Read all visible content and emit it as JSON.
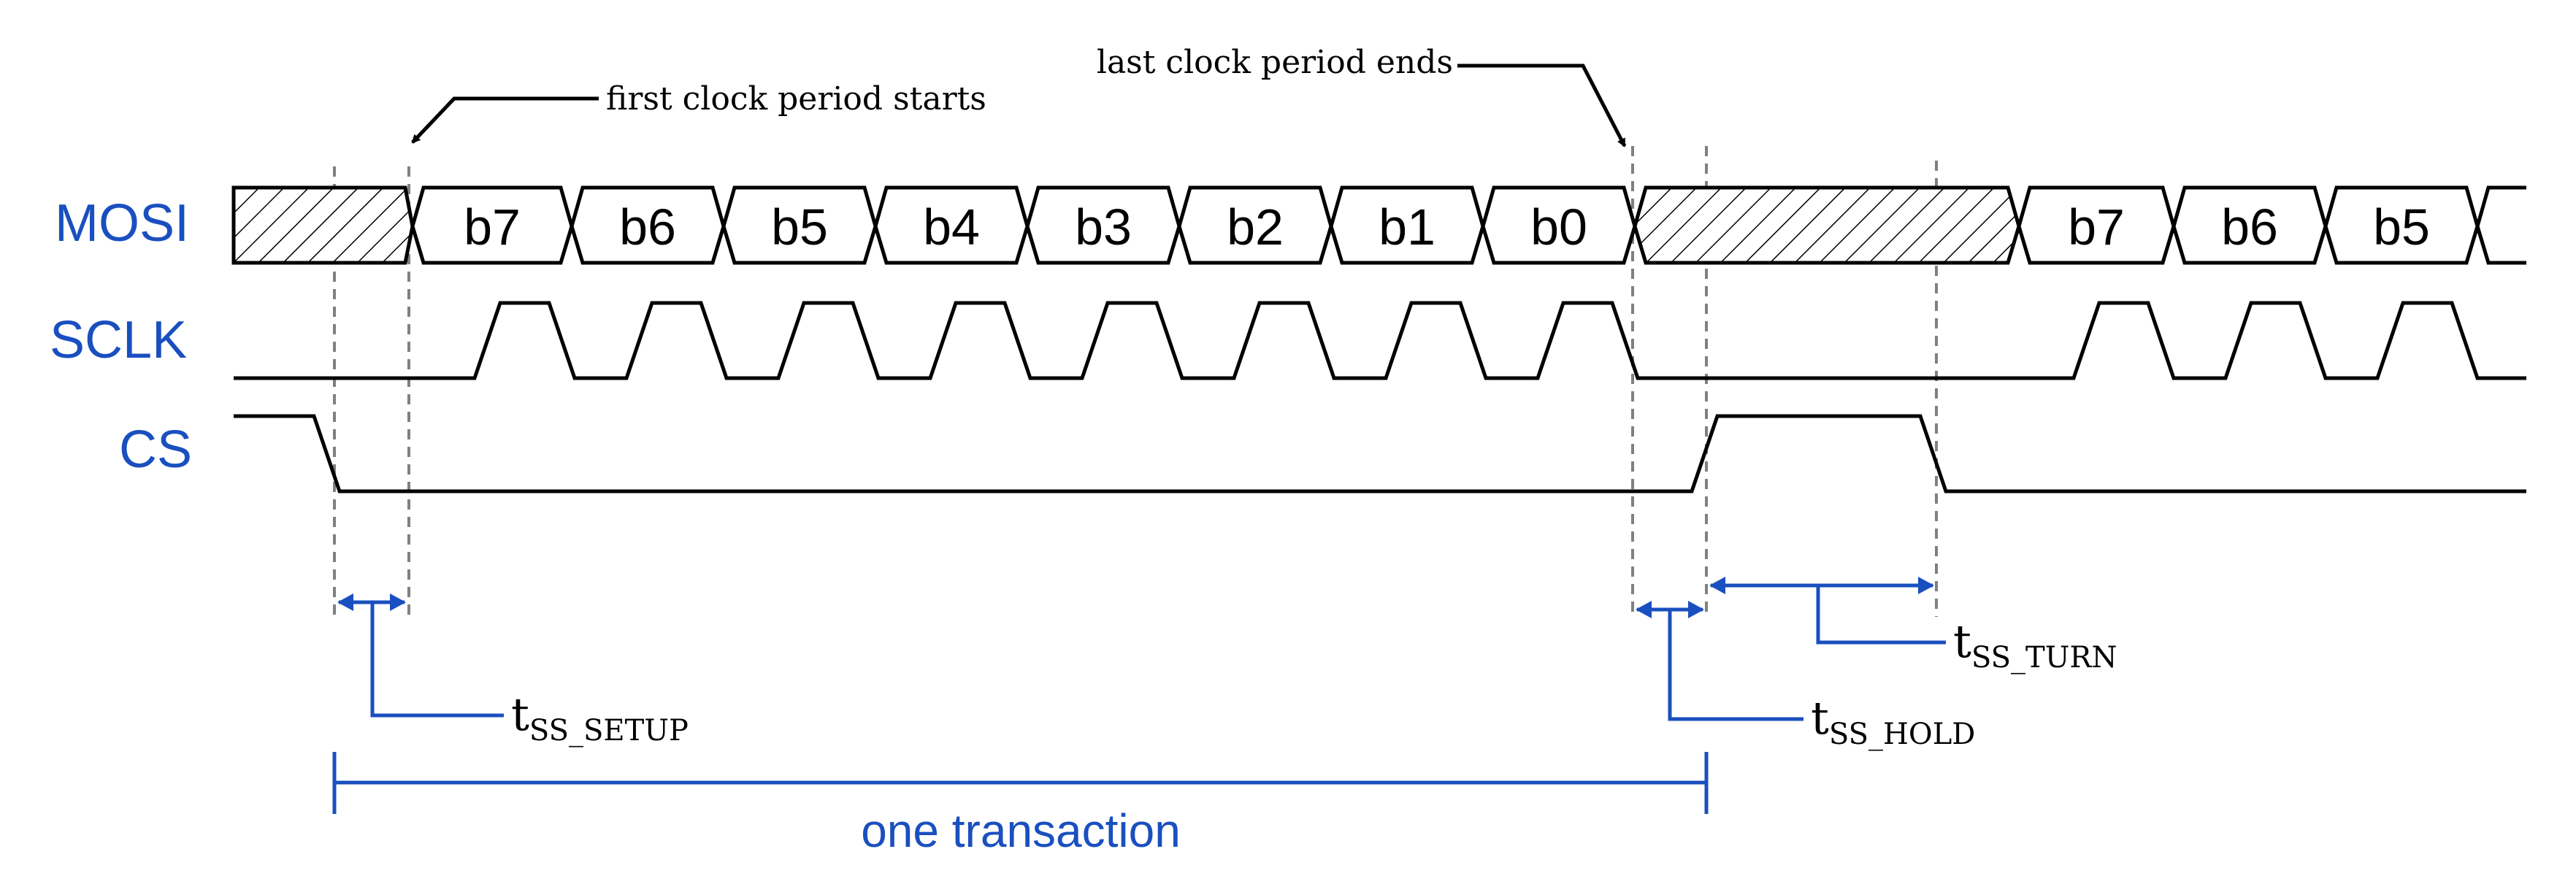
{
  "signals": {
    "mosi": "MOSI",
    "sclk": "SCLK",
    "cs": "CS"
  },
  "mosi_bits_transaction_1": [
    "b7",
    "b6",
    "b5",
    "b4",
    "b3",
    "b2",
    "b1",
    "b0"
  ],
  "mosi_bits_transaction_2": [
    "b7",
    "b6",
    "b5"
  ],
  "annotations": {
    "first_clock": "first clock period starts",
    "last_clock": "last clock period ends"
  },
  "timings": {
    "setup": {
      "main": "t",
      "sub": "SS_SETUP"
    },
    "hold": {
      "main": "t",
      "sub": "SS_HOLD"
    },
    "turn": {
      "main": "t",
      "sub": "SS_TURN"
    }
  },
  "transaction_label": "one transaction",
  "colors": {
    "signal_label": "#1a4fbf",
    "dimension": "#1a4fbf",
    "waveform": "#000000",
    "guide": "#808080"
  }
}
